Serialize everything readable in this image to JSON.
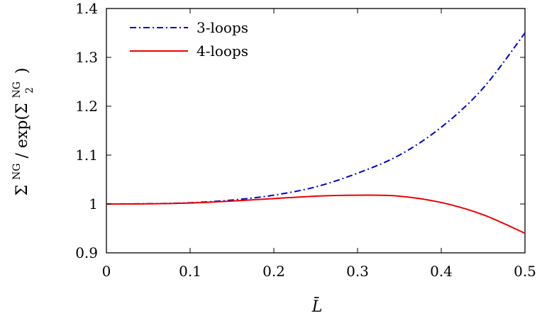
{
  "chart_data": {
    "type": "line",
    "xlabel": "L̄",
    "ylabel_main": "Σ",
    "ylabel_sup": "NG",
    "ylabel_mid": " / exp(Σ",
    "ylabel_sub": "2",
    "ylabel_sup2": "NG",
    "ylabel_end": ")",
    "xlim": [
      0,
      0.5
    ],
    "ylim": [
      0.9,
      1.4
    ],
    "xticks": [
      "0",
      "0.1",
      "0.2",
      "0.3",
      "0.4",
      "0.5"
    ],
    "yticks": [
      "0.9",
      "1",
      "1.1",
      "1.2",
      "1.3",
      "1.4"
    ],
    "grid": false,
    "legend_position": "top-left",
    "series": [
      {
        "name": "3-loops",
        "color": "#0000cc",
        "dash": "dash-dot",
        "x": [
          0,
          0.05,
          0.1,
          0.15,
          0.2,
          0.25,
          0.3,
          0.35,
          0.4,
          0.45,
          0.5
        ],
        "y": [
          1.0,
          1.0005,
          1.0025,
          1.008,
          1.018,
          1.035,
          1.063,
          1.1,
          1.157,
          1.237,
          1.35
        ]
      },
      {
        "name": "4-loops",
        "color": "#ee0000",
        "dash": "solid",
        "x": [
          0,
          0.05,
          0.1,
          0.15,
          0.2,
          0.25,
          0.3,
          0.35,
          0.4,
          0.45,
          0.5
        ],
        "y": [
          1.0,
          1.0003,
          1.002,
          1.006,
          1.011,
          1.016,
          1.018,
          1.016,
          1.003,
          0.978,
          0.94
        ]
      }
    ]
  }
}
